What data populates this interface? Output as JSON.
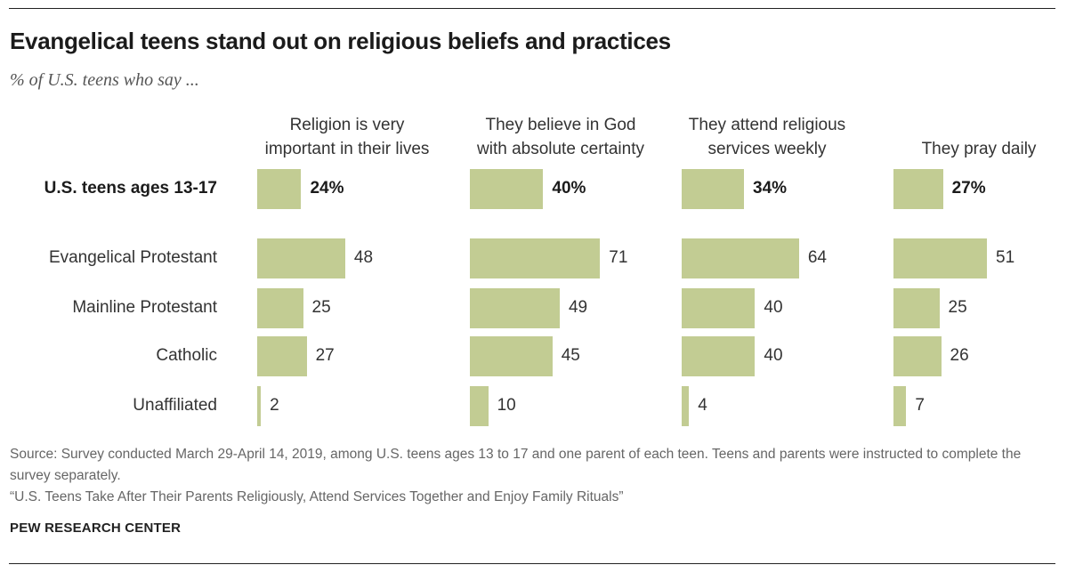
{
  "header": {
    "title": "Evangelical teens stand out on religious beliefs and practices",
    "subtitle": "% of U.S. teens who say ..."
  },
  "chart_data": {
    "type": "bar",
    "orientation": "horizontal",
    "categories": [
      "U.S. teens ages 13-17",
      "Evangelical Protestant",
      "Mainline Protestant",
      "Catholic",
      "Unaffiliated"
    ],
    "category_bold": [
      true,
      false,
      false,
      false,
      false
    ],
    "value_labels": [
      [
        "24%",
        "48",
        "25",
        "27",
        "2"
      ],
      [
        "40%",
        "71",
        "49",
        "45",
        "10"
      ],
      [
        "34%",
        "64",
        "40",
        "40",
        "4"
      ],
      [
        "27%",
        "51",
        "25",
        "26",
        "7"
      ]
    ],
    "series": [
      {
        "name": "Religion is very\nimportant in their lives",
        "values": [
          24,
          48,
          25,
          27,
          2
        ]
      },
      {
        "name": "They believe in God\nwith absolute certainty",
        "values": [
          40,
          71,
          49,
          45,
          10
        ]
      },
      {
        "name": "They attend religious\nservices weekly",
        "values": [
          34,
          64,
          40,
          40,
          4
        ]
      },
      {
        "name": "They pray daily",
        "values": [
          27,
          51,
          25,
          26,
          7
        ]
      }
    ],
    "bar_color": "#c2cc93",
    "unit": "%"
  },
  "footer": {
    "source": "Source: Survey conducted March 29-April 14, 2019, among U.S. teens ages 13 to 17 and one parent of each teen. Teens and parents were instructed to complete the survey separately.",
    "report": "“U.S. Teens Take After Their Parents Religiously, Attend Services Together and Enjoy Family Rituals”",
    "brand": "PEW RESEARCH CENTER"
  }
}
